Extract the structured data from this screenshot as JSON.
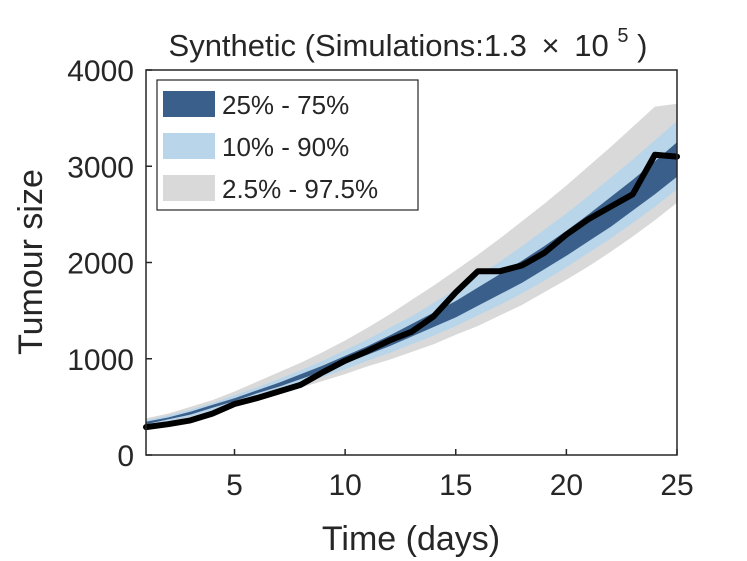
{
  "chart_data": {
    "type": "area",
    "title": {
      "main": "Synthetic (Simulations:1.3",
      "times": "×",
      "base": "10",
      "exponent": "5",
      "close": ")"
    },
    "xlabel": "Time (days)",
    "ylabel": "Tumour size",
    "xlim": [
      1,
      25
    ],
    "ylim": [
      0,
      4000
    ],
    "xticks": [
      5,
      10,
      15,
      20,
      25
    ],
    "yticks": [
      0,
      1000,
      2000,
      3000,
      4000
    ],
    "x": [
      1,
      2,
      3,
      4,
      5,
      6,
      7,
      8,
      9,
      10,
      11,
      12,
      13,
      14,
      15,
      16,
      17,
      18,
      19,
      20,
      21,
      22,
      23,
      24,
      25
    ],
    "bands": [
      {
        "name": "2.5% - 97.5%",
        "color": "#d9d9d9",
        "lower": [
          290,
          330,
          370,
          430,
          500,
          570,
          640,
          700,
          770,
          840,
          920,
          990,
          1070,
          1150,
          1250,
          1340,
          1450,
          1560,
          1690,
          1820,
          1960,
          2110,
          2270,
          2440,
          2620
        ],
        "upper": [
          380,
          430,
          500,
          570,
          660,
          760,
          860,
          960,
          1070,
          1190,
          1320,
          1460,
          1610,
          1760,
          1920,
          2080,
          2250,
          2430,
          2610,
          2800,
          3000,
          3200,
          3410,
          3620,
          3650
        ]
      },
      {
        "name": "10% - 90%",
        "color": "#b8d5ea",
        "lower": [
          310,
          350,
          400,
          460,
          530,
          600,
          670,
          740,
          810,
          890,
          980,
          1060,
          1150,
          1240,
          1340,
          1450,
          1560,
          1680,
          1810,
          1950,
          2100,
          2250,
          2410,
          2580,
          2760
        ],
        "upper": [
          360,
          410,
          470,
          540,
          620,
          700,
          790,
          880,
          980,
          1090,
          1200,
          1320,
          1440,
          1580,
          1720,
          1860,
          2010,
          2170,
          2340,
          2510,
          2690,
          2880,
          3070,
          3270,
          3470
        ]
      },
      {
        "name": "25% - 75%",
        "color": "#3a5f8a",
        "lower": [
          320,
          370,
          420,
          490,
          560,
          640,
          710,
          790,
          870,
          950,
          1040,
          1130,
          1230,
          1330,
          1430,
          1550,
          1670,
          1790,
          1930,
          2070,
          2220,
          2370,
          2540,
          2710,
          2890
        ],
        "upper": [
          345,
          390,
          450,
          520,
          590,
          670,
          750,
          840,
          930,
          1030,
          1130,
          1240,
          1360,
          1480,
          1600,
          1740,
          1880,
          2020,
          2170,
          2330,
          2500,
          2680,
          2860,
          3050,
          3250
        ]
      }
    ],
    "series": [
      {
        "name": "Synthetic",
        "color": "#000000",
        "values": [
          290,
          320,
          360,
          430,
          530,
          590,
          660,
          730,
          860,
          980,
          1080,
          1190,
          1280,
          1440,
          1690,
          1910,
          1910,
          1970,
          2100,
          2290,
          2450,
          2580,
          2710,
          3120,
          3100
        ]
      }
    ],
    "legend": {
      "position": "top-left",
      "entries": [
        {
          "label": "25% - 75%",
          "color": "#3a5f8a"
        },
        {
          "label": "10% - 90%",
          "color": "#b8d5ea"
        },
        {
          "label": "2.5% - 97.5%",
          "color": "#d9d9d9"
        }
      ]
    }
  }
}
